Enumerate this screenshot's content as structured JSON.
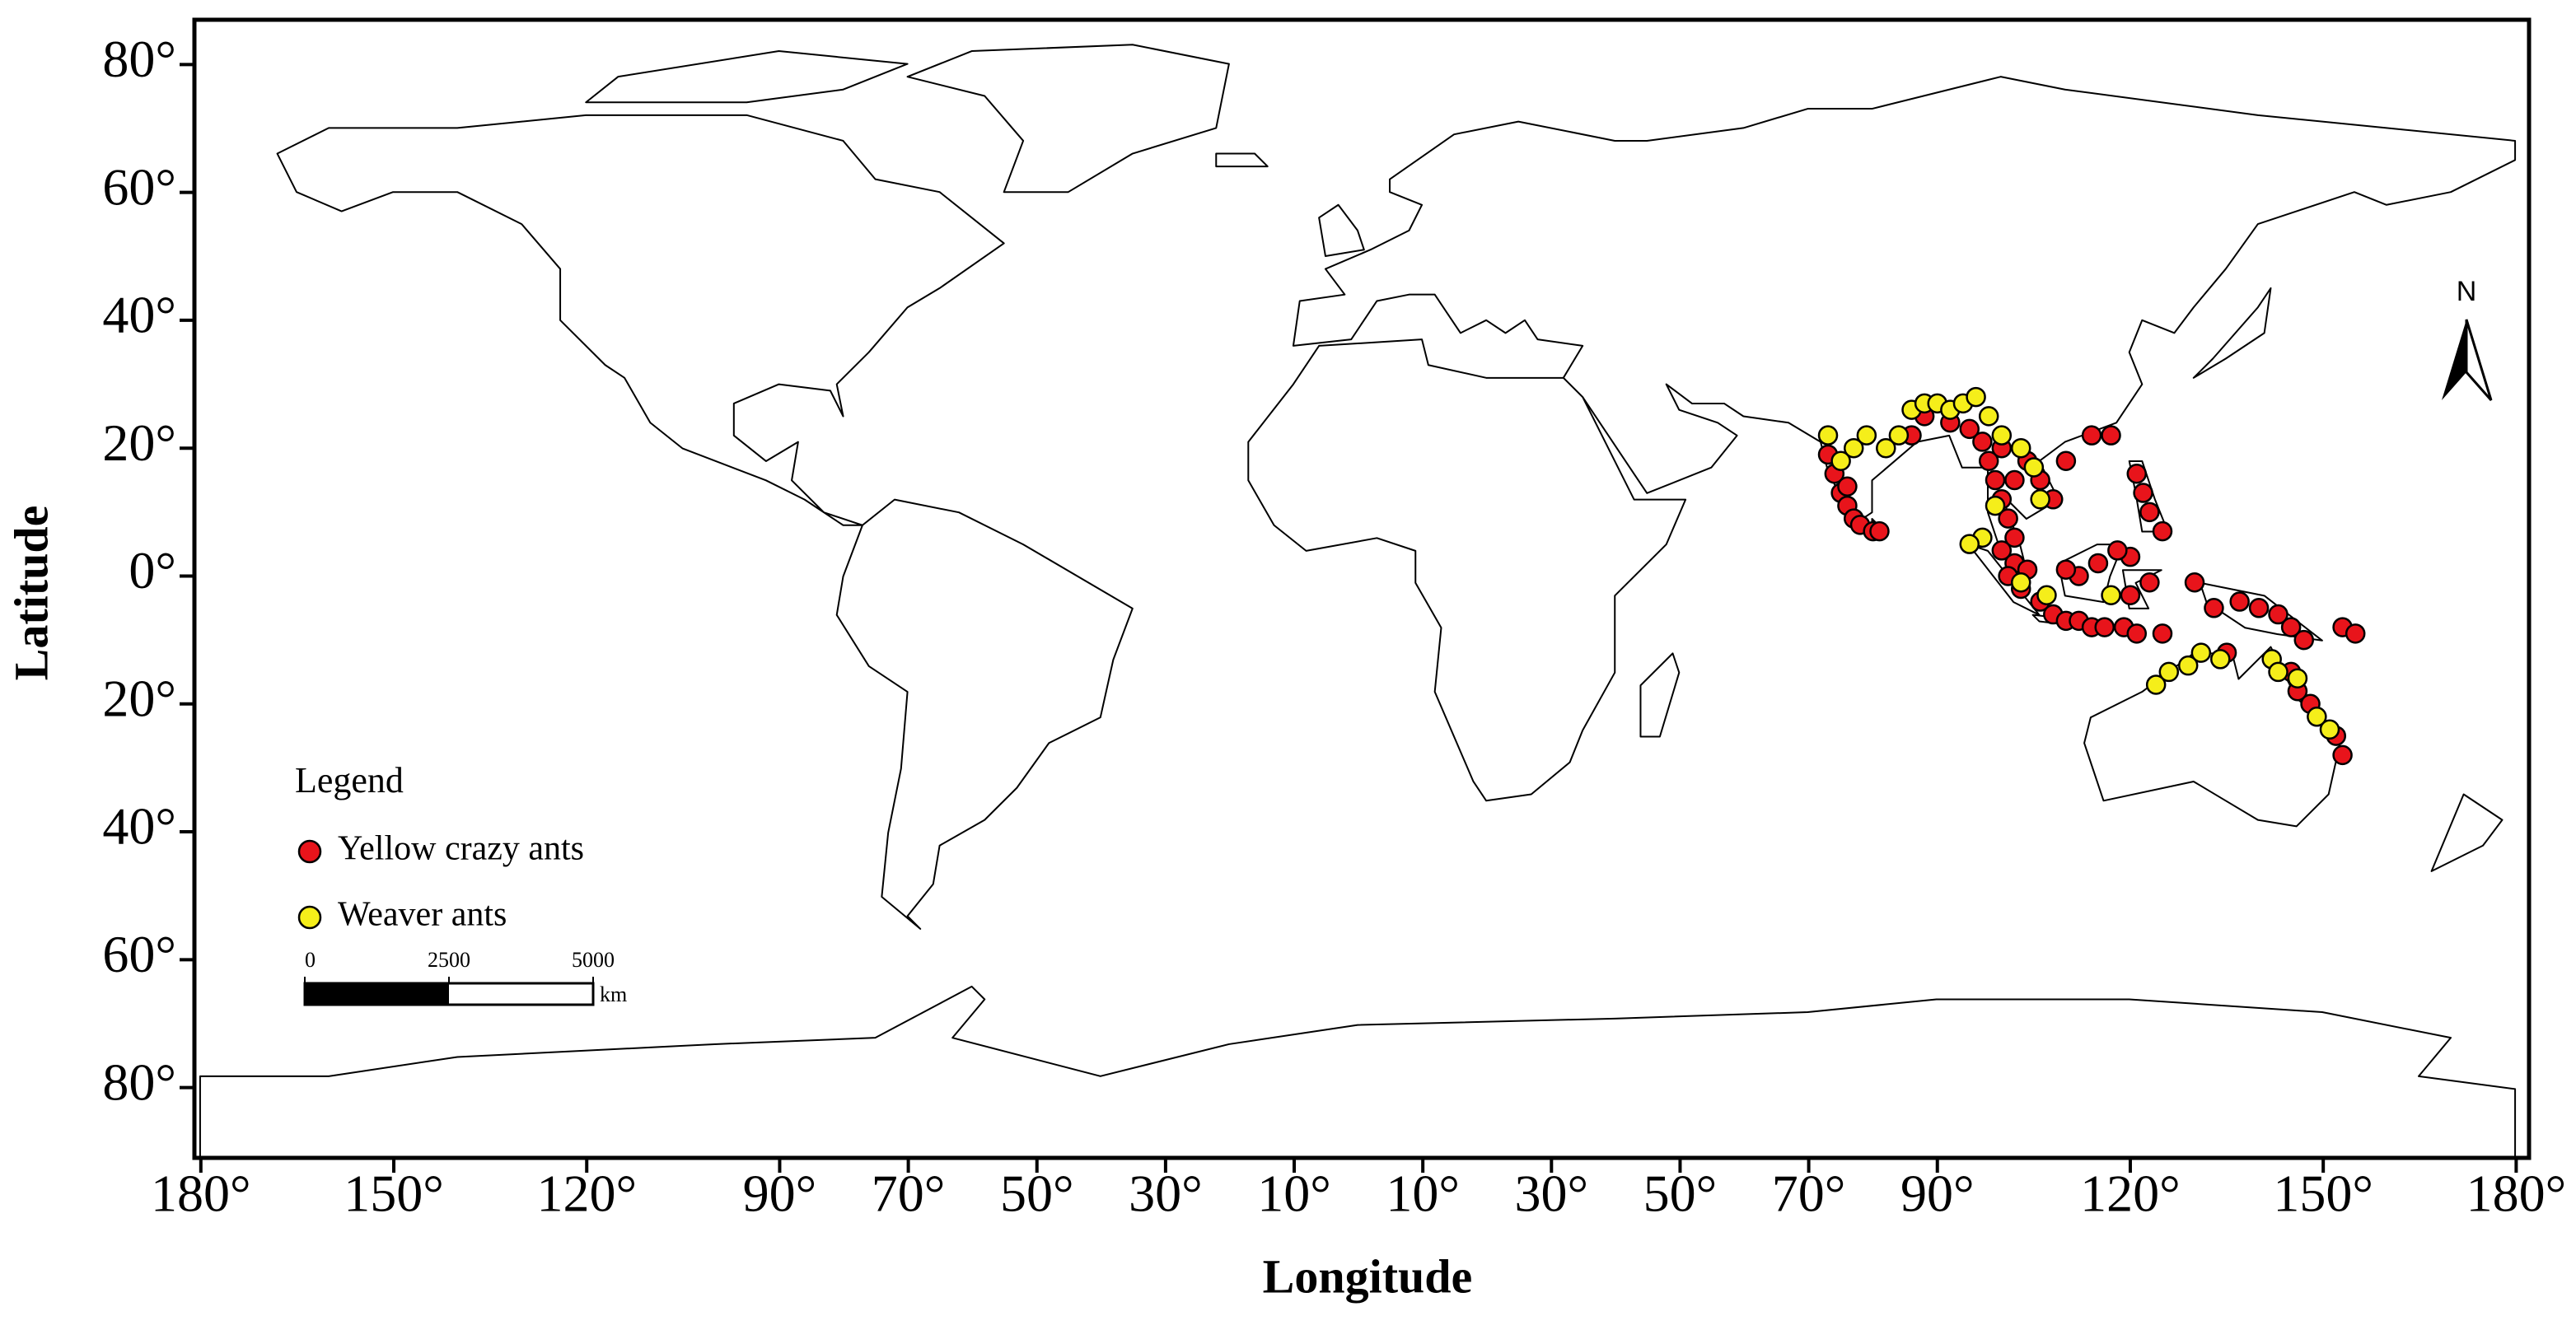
{
  "chart_data": {
    "type": "scatter",
    "xlabel": "Longitude",
    "ylabel": "Latitude",
    "xlim": [
      -181,
      182
    ],
    "ylim": [
      -91,
      87
    ],
    "xticks": [
      {
        "value": -180,
        "label": "180°"
      },
      {
        "value": -150,
        "label": "150°"
      },
      {
        "value": -120,
        "label": "120°"
      },
      {
        "value": -90,
        "label": "90°"
      },
      {
        "value": -70,
        "label": "70°"
      },
      {
        "value": -50,
        "label": "50°"
      },
      {
        "value": -30,
        "label": "30°"
      },
      {
        "value": -10,
        "label": "10°"
      },
      {
        "value": 10,
        "label": "10°"
      },
      {
        "value": 30,
        "label": "30°"
      },
      {
        "value": 50,
        "label": "50°"
      },
      {
        "value": 70,
        "label": "70°"
      },
      {
        "value": 90,
        "label": "90°"
      },
      {
        "value": 120,
        "label": "120°"
      },
      {
        "value": 150,
        "label": "150°"
      },
      {
        "value": 180,
        "label": "180°"
      }
    ],
    "yticks": [
      {
        "value": 80,
        "label": "80°"
      },
      {
        "value": 60,
        "label": "60°"
      },
      {
        "value": 40,
        "label": "40°"
      },
      {
        "value": 20,
        "label": "20°"
      },
      {
        "value": 0,
        "label": "0°"
      },
      {
        "value": -20,
        "label": "20°"
      },
      {
        "value": -40,
        "label": "40°"
      },
      {
        "value": -60,
        "label": "60°"
      },
      {
        "value": -80,
        "label": "80°"
      }
    ],
    "legend_title": "Legend",
    "series": [
      {
        "name": "Yellow crazy ants",
        "color": "#e8141b",
        "x": [
          73,
          74,
          75,
          76,
          77,
          78,
          76,
          80,
          81,
          86,
          88,
          92,
          95,
          97,
          98,
          99,
          100,
          101,
          102,
          100,
          102,
          104,
          101,
          103,
          106,
          108,
          110,
          112,
          114,
          116,
          119,
          121,
          125,
          104,
          106,
          108,
          110,
          114,
          117,
          121,
          122,
          123,
          125,
          120,
          118,
          115,
          112,
          110,
          123,
          120,
          130,
          133,
          137,
          140,
          143,
          145,
          147,
          153,
          155,
          145,
          146,
          148,
          152,
          153,
          135,
          100,
          102
        ],
        "values": [
          19,
          16,
          13,
          11,
          9,
          8,
          14,
          7,
          7,
          22,
          25,
          24,
          23,
          21,
          18,
          15,
          12,
          9,
          6,
          4,
          2,
          1,
          0,
          -2,
          -4,
          -6,
          -7,
          -7,
          -8,
          -8,
          -8,
          -9,
          -9,
          18,
          15,
          12,
          18,
          22,
          22,
          16,
          13,
          10,
          7,
          3,
          4,
          2,
          0,
          1,
          -1,
          -3,
          -1,
          -5,
          -4,
          -5,
          -6,
          -8,
          -10,
          -8,
          -9,
          -15,
          -18,
          -20,
          -25,
          -28,
          -12,
          20,
          15
        ]
      },
      {
        "name": "Weaver ants",
        "color": "#f5ee1a",
        "x": [
          73,
          75,
          77,
          79,
          82,
          84,
          86,
          88,
          90,
          92,
          94,
          96,
          98,
          100,
          103,
          105,
          106,
          99,
          97,
          95,
          103,
          107,
          124,
          126,
          129,
          131,
          134,
          142,
          143,
          146,
          149,
          151,
          117
        ],
        "values": [
          22,
          18,
          20,
          22,
          20,
          22,
          26,
          27,
          27,
          26,
          27,
          28,
          25,
          22,
          20,
          17,
          12,
          11,
          6,
          5,
          -1,
          -3,
          -17,
          -15,
          -14,
          -12,
          -13,
          -13,
          -15,
          -16,
          -22,
          -24,
          -3
        ]
      }
    ],
    "scale_bar": {
      "ticks": [
        0,
        2500,
        5000
      ],
      "unit": "km"
    },
    "north_label": "N"
  }
}
